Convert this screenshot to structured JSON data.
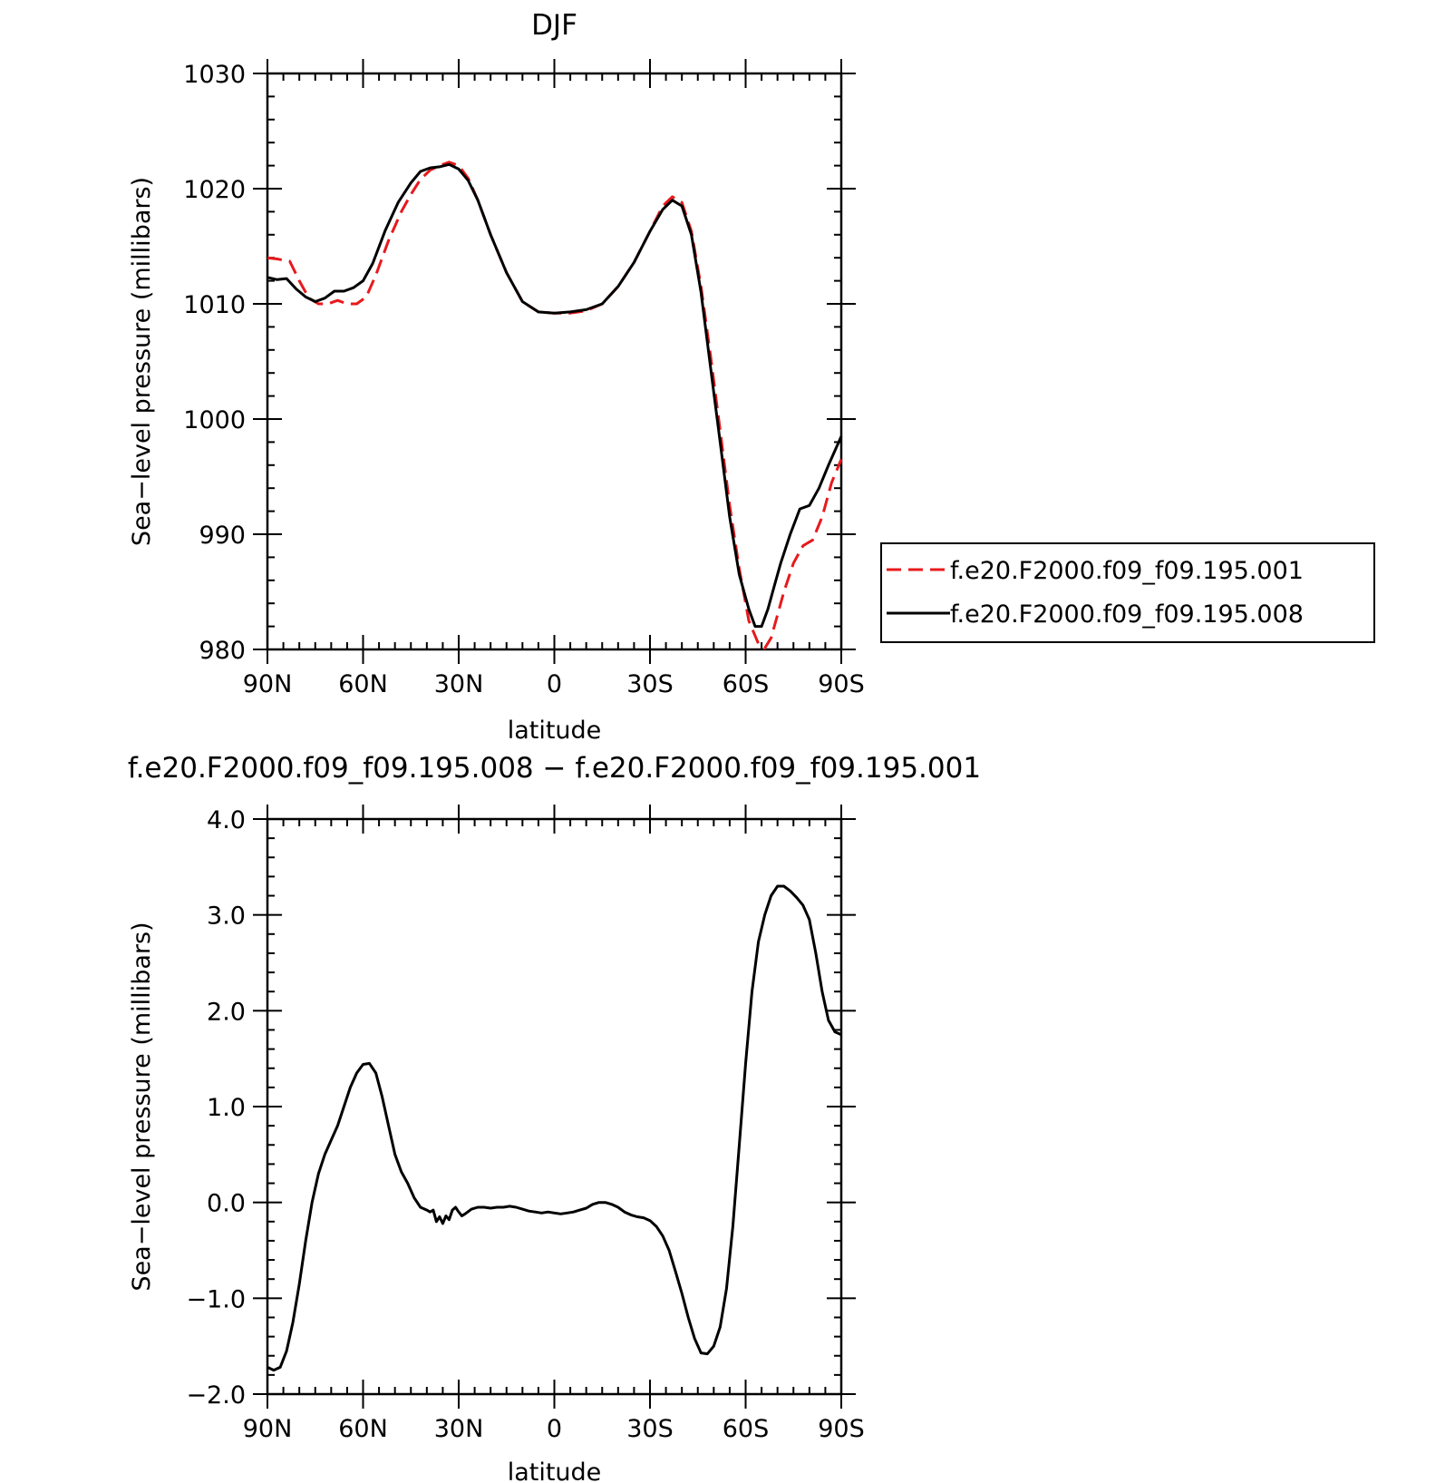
{
  "chart_data": [
    {
      "type": "line",
      "title": "DJF",
      "xlabel": "latitude",
      "ylabel": "Sea−level pressure (millibars)",
      "xlim": [
        90,
        -90
      ],
      "ylim": [
        980,
        1030
      ],
      "x_ticks": [
        90,
        60,
        30,
        0,
        -30,
        -60,
        -90
      ],
      "x_tick_labels": [
        "90N",
        "60N",
        "30N",
        "0",
        "30S",
        "60S",
        "90S"
      ],
      "y_ticks": [
        980,
        990,
        1000,
        1010,
        1020,
        1030
      ],
      "y_tick_labels": [
        "980",
        "990",
        "1000",
        "1010",
        "1020",
        "1030"
      ],
      "legend_position": "right",
      "series": [
        {
          "name": "f.e20.F2000.f09_f09.195.001",
          "color": "#e8191c",
          "dash": true,
          "x": [
            90,
            87,
            83,
            80,
            77,
            74,
            71,
            68,
            65,
            62,
            59,
            56,
            52,
            48,
            45,
            42,
            39,
            36,
            33,
            30,
            27,
            24,
            20,
            15,
            10,
            5,
            0,
            -5,
            -10,
            -15,
            -20,
            -25,
            -30,
            -34,
            -37,
            -40,
            -43,
            -46,
            -49,
            -52,
            -55,
            -58,
            -61,
            -64,
            -66,
            -68,
            -70,
            -72,
            -75,
            -78,
            -81,
            -84,
            -87,
            -90
          ],
          "y": [
            1014.0,
            1013.9,
            1013.7,
            1012.0,
            1010.5,
            1010.0,
            1010.0,
            1010.3,
            1010.0,
            1010.0,
            1010.6,
            1012.5,
            1015.5,
            1018.0,
            1019.5,
            1020.8,
            1021.6,
            1022.0,
            1022.3,
            1022.0,
            1020.9,
            1019.0,
            1016.0,
            1012.7,
            1010.2,
            1009.3,
            1009.2,
            1009.2,
            1009.4,
            1010.0,
            1011.5,
            1013.6,
            1016.3,
            1018.5,
            1019.3,
            1018.8,
            1016.3,
            1011.5,
            1005.5,
            999.0,
            992.5,
            987.0,
            982.5,
            980.5,
            980.1,
            981.0,
            983.0,
            985.0,
            987.5,
            989.0,
            989.5,
            991.5,
            994.5,
            996.5
          ]
        },
        {
          "name": "f.e20.F2000.f09_f09.195.008",
          "color": "#000000",
          "dash": false,
          "x": [
            90,
            87,
            84,
            81,
            78,
            75,
            72,
            69,
            66,
            63,
            60,
            57,
            53,
            49,
            45,
            42,
            39,
            36,
            33,
            30,
            27,
            24,
            20,
            15,
            10,
            5,
            0,
            -5,
            -10,
            -15,
            -20,
            -25,
            -30,
            -34,
            -37,
            -40,
            -43,
            -46,
            -49,
            -52,
            -55,
            -58,
            -61,
            -63,
            -65,
            -67,
            -69,
            -71,
            -74,
            -77,
            -80,
            -83,
            -86,
            -90
          ],
          "y": [
            1012.3,
            1012.1,
            1012.2,
            1011.3,
            1010.6,
            1010.2,
            1010.5,
            1011.1,
            1011.1,
            1011.4,
            1012.0,
            1013.5,
            1016.4,
            1018.8,
            1020.5,
            1021.5,
            1021.8,
            1021.9,
            1022.1,
            1021.7,
            1020.7,
            1019.0,
            1016.0,
            1012.7,
            1010.2,
            1009.3,
            1009.2,
            1009.3,
            1009.5,
            1010.0,
            1011.5,
            1013.6,
            1016.3,
            1018.2,
            1019.0,
            1018.5,
            1016.0,
            1011.0,
            1004.5,
            998.0,
            991.5,
            986.5,
            983.5,
            982.0,
            982.0,
            983.5,
            985.5,
            987.5,
            990.0,
            992.2,
            992.5,
            994.0,
            996.0,
            998.5
          ]
        }
      ]
    },
    {
      "type": "line",
      "title": "f.e20.F2000.f09_f09.195.008 − f.e20.F2000.f09_f09.195.001",
      "xlabel": "latitude",
      "ylabel": "Sea−level pressure (millibars)",
      "xlim": [
        90,
        -90
      ],
      "ylim": [
        -2.0,
        4.0
      ],
      "x_ticks": [
        90,
        60,
        30,
        0,
        -30,
        -60,
        -90
      ],
      "x_tick_labels": [
        "90N",
        "60N",
        "30N",
        "0",
        "30S",
        "60S",
        "90S"
      ],
      "y_ticks": [
        -2.0,
        -1.0,
        0.0,
        1.0,
        2.0,
        3.0,
        4.0
      ],
      "y_tick_labels": [
        "−2.0",
        "−1.0",
        "0.0",
        "1.0",
        "2.0",
        "3.0",
        "4.0"
      ],
      "series": [
        {
          "color": "#000000",
          "dash": false,
          "x": [
            90,
            88,
            86,
            84,
            82,
            80,
            78,
            76,
            74,
            72,
            70,
            68,
            66,
            64,
            62,
            60,
            58,
            56,
            54,
            52,
            50,
            48,
            46,
            44,
            42,
            40,
            39,
            38,
            37,
            36,
            35,
            34,
            33,
            32,
            31,
            30,
            29,
            28,
            26,
            24,
            22,
            20,
            18,
            16,
            14,
            12,
            10,
            8,
            6,
            4,
            2,
            0,
            -2,
            -4,
            -6,
            -8,
            -10,
            -12,
            -14,
            -16,
            -18,
            -20,
            -22,
            -24,
            -26,
            -28,
            -30,
            -32,
            -34,
            -36,
            -38,
            -40,
            -42,
            -44,
            -46,
            -48,
            -50,
            -52,
            -54,
            -56,
            -58,
            -60,
            -62,
            -64,
            -66,
            -68,
            -70,
            -72,
            -74,
            -76,
            -78,
            -80,
            -82,
            -84,
            -86,
            -88,
            -90
          ],
          "y": [
            -1.72,
            -1.75,
            -1.72,
            -1.55,
            -1.25,
            -0.85,
            -0.4,
            0.0,
            0.3,
            0.5,
            0.65,
            0.8,
            1.0,
            1.2,
            1.35,
            1.44,
            1.45,
            1.35,
            1.1,
            0.8,
            0.5,
            0.32,
            0.2,
            0.05,
            -0.05,
            -0.08,
            -0.1,
            -0.08,
            -0.2,
            -0.15,
            -0.22,
            -0.14,
            -0.18,
            -0.08,
            -0.05,
            -0.1,
            -0.14,
            -0.12,
            -0.07,
            -0.05,
            -0.05,
            -0.06,
            -0.05,
            -0.05,
            -0.04,
            -0.05,
            -0.07,
            -0.09,
            -0.1,
            -0.11,
            -0.1,
            -0.11,
            -0.12,
            -0.11,
            -0.1,
            -0.08,
            -0.06,
            -0.02,
            0.0,
            0.0,
            -0.02,
            -0.05,
            -0.1,
            -0.13,
            -0.15,
            -0.16,
            -0.19,
            -0.25,
            -0.35,
            -0.5,
            -0.72,
            -0.95,
            -1.2,
            -1.42,
            -1.57,
            -1.58,
            -1.5,
            -1.3,
            -0.9,
            -0.25,
            0.6,
            1.45,
            2.2,
            2.72,
            3.0,
            3.2,
            3.3,
            3.3,
            3.25,
            3.18,
            3.1,
            2.95,
            2.6,
            2.2,
            1.9,
            1.78,
            1.75
          ]
        }
      ]
    }
  ]
}
